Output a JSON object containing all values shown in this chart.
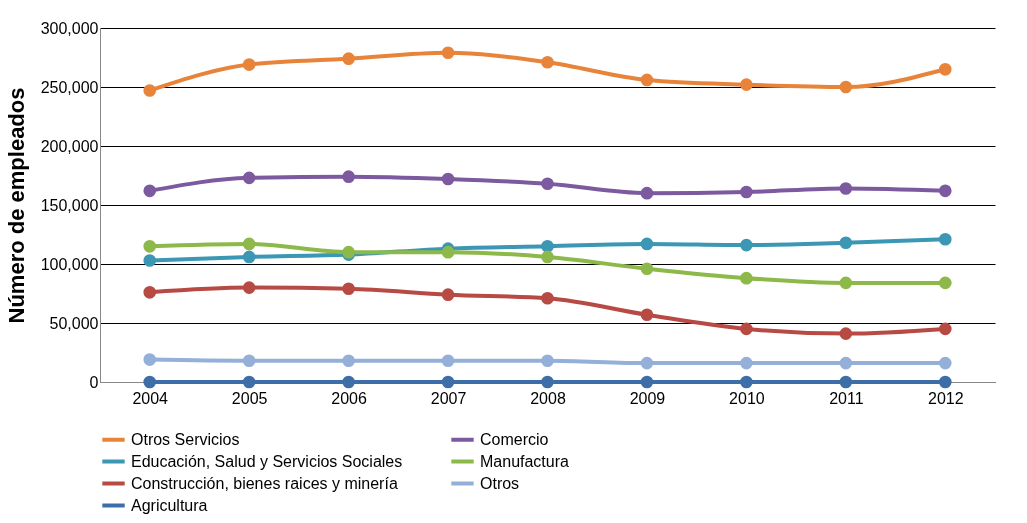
{
  "chart_data": {
    "type": "line",
    "ylabel": "Número de empleados",
    "categories": [
      "2004",
      "2005",
      "2006",
      "2007",
      "2008",
      "2009",
      "2010",
      "2011",
      "2012"
    ],
    "series": [
      {
        "name": "Otros Servicios",
        "color": "#e8843a",
        "values": [
          247000,
          269000,
          274000,
          279000,
          271000,
          256000,
          252000,
          250000,
          265000
        ]
      },
      {
        "name": "Comercio",
        "color": "#7d5aa0",
        "values": [
          162000,
          173000,
          174000,
          172000,
          168000,
          160000,
          161000,
          164000,
          162000
        ]
      },
      {
        "name": "Educación, Salud y Servicios Sociales",
        "color": "#3b97b3",
        "values": [
          103000,
          106000,
          108000,
          113000,
          115000,
          117000,
          116000,
          118000,
          121000
        ]
      },
      {
        "name": "Manufactura",
        "color": "#8db84a",
        "values": [
          115000,
          117000,
          110000,
          110000,
          106000,
          96000,
          88000,
          84000,
          84000
        ]
      },
      {
        "name": "Construcción, bienes raices y minería",
        "color": "#b84a44",
        "values": [
          76000,
          80000,
          79000,
          74000,
          71000,
          57000,
          45000,
          41000,
          45000
        ]
      },
      {
        "name": "Otros",
        "color": "#94afd8",
        "values": [
          19000,
          18000,
          18000,
          18000,
          18000,
          16000,
          16000,
          16000,
          16000
        ]
      },
      {
        "name": "Agricultura",
        "color": "#3e6ea8",
        "values": [
          0,
          0,
          0,
          0,
          0,
          0,
          0,
          0,
          0
        ]
      }
    ],
    "ylim": [
      0,
      300000
    ],
    "yticks": [
      0,
      {
        "value": 50000,
        "label": "50,000"
      },
      {
        "value": 100000,
        "label": "100,000"
      },
      {
        "value": 150000,
        "label": "150,000"
      },
      {
        "value": 200000,
        "label": "200,000"
      },
      {
        "value": 250000,
        "label": "250,000"
      },
      {
        "value": 300000,
        "label": "300,000"
      }
    ],
    "grid": "y",
    "legend": "bottom",
    "marker": "circle",
    "line_style": "solid"
  }
}
